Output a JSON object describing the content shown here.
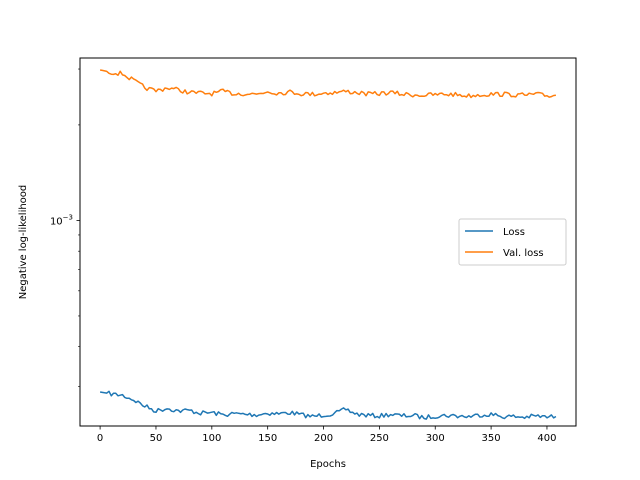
{
  "chart_data": {
    "type": "line",
    "title": "",
    "xlabel": "Epochs",
    "ylabel": "Negative log-likelihood",
    "xscale": "linear",
    "yscale": "log",
    "xlim": [
      -18,
      426
    ],
    "ylim": [
      0.000225,
      0.00325
    ],
    "xticks": [
      0,
      50,
      100,
      150,
      200,
      250,
      300,
      350,
      400
    ],
    "yticks_major": [
      {
        "value": 0.001,
        "base": "10",
        "exp": "−3"
      }
    ],
    "yticks_minor": [
      0.0003,
      0.0004,
      0.0005,
      0.0006,
      0.0007,
      0.0008,
      0.0009,
      0.002,
      0.003
    ],
    "grid": false,
    "legend": {
      "position": "center-right"
    },
    "series": [
      {
        "name": "Loss",
        "color": "#1f77b4",
        "x": [
          0,
          10,
          20,
          30,
          40,
          50,
          60,
          70,
          80,
          90,
          100,
          110,
          120,
          130,
          140,
          150,
          160,
          170,
          180,
          190,
          200,
          210,
          220,
          230,
          240,
          250,
          260,
          270,
          280,
          290,
          300,
          310,
          320,
          330,
          340,
          350,
          360,
          370,
          380,
          390,
          400,
          408
        ],
        "y": [
          0.000288,
          0.000284,
          0.000281,
          0.000272,
          0.00026,
          0.000251,
          0.000256,
          0.000251,
          0.000252,
          0.000247,
          0.000248,
          0.000244,
          0.000246,
          0.000245,
          0.000244,
          0.000247,
          0.000246,
          0.000248,
          0.000244,
          0.000241,
          0.000244,
          0.000246,
          0.000254,
          0.000245,
          0.000243,
          0.000242,
          0.000245,
          0.000242,
          0.000243,
          0.000239,
          0.000242,
          0.000243,
          0.000242,
          0.000241,
          0.000244,
          0.000245,
          0.000241,
          0.000241,
          0.00024,
          0.000242,
          0.00024,
          0.000241
        ]
      },
      {
        "name": "Val. loss",
        "color": "#ff7f0e",
        "x": [
          0,
          10,
          20,
          30,
          40,
          50,
          60,
          70,
          80,
          90,
          100,
          110,
          120,
          130,
          140,
          150,
          160,
          170,
          180,
          190,
          200,
          210,
          220,
          230,
          240,
          250,
          260,
          270,
          280,
          290,
          300,
          310,
          320,
          330,
          340,
          350,
          360,
          370,
          380,
          390,
          400,
          408
        ],
        "y": [
          0.00298,
          0.00293,
          0.0029,
          0.00276,
          0.00262,
          0.00256,
          0.00262,
          0.00258,
          0.00253,
          0.00252,
          0.00251,
          0.00255,
          0.00251,
          0.00251,
          0.0025,
          0.00255,
          0.00252,
          0.00254,
          0.00251,
          0.0025,
          0.00252,
          0.00253,
          0.00255,
          0.00253,
          0.0025,
          0.00251,
          0.00253,
          0.0025,
          0.00249,
          0.00248,
          0.00249,
          0.0025,
          0.00249,
          0.00247,
          0.00249,
          0.0025,
          0.0025,
          0.00249,
          0.00248,
          0.0025,
          0.00247,
          0.00248
        ]
      }
    ]
  }
}
